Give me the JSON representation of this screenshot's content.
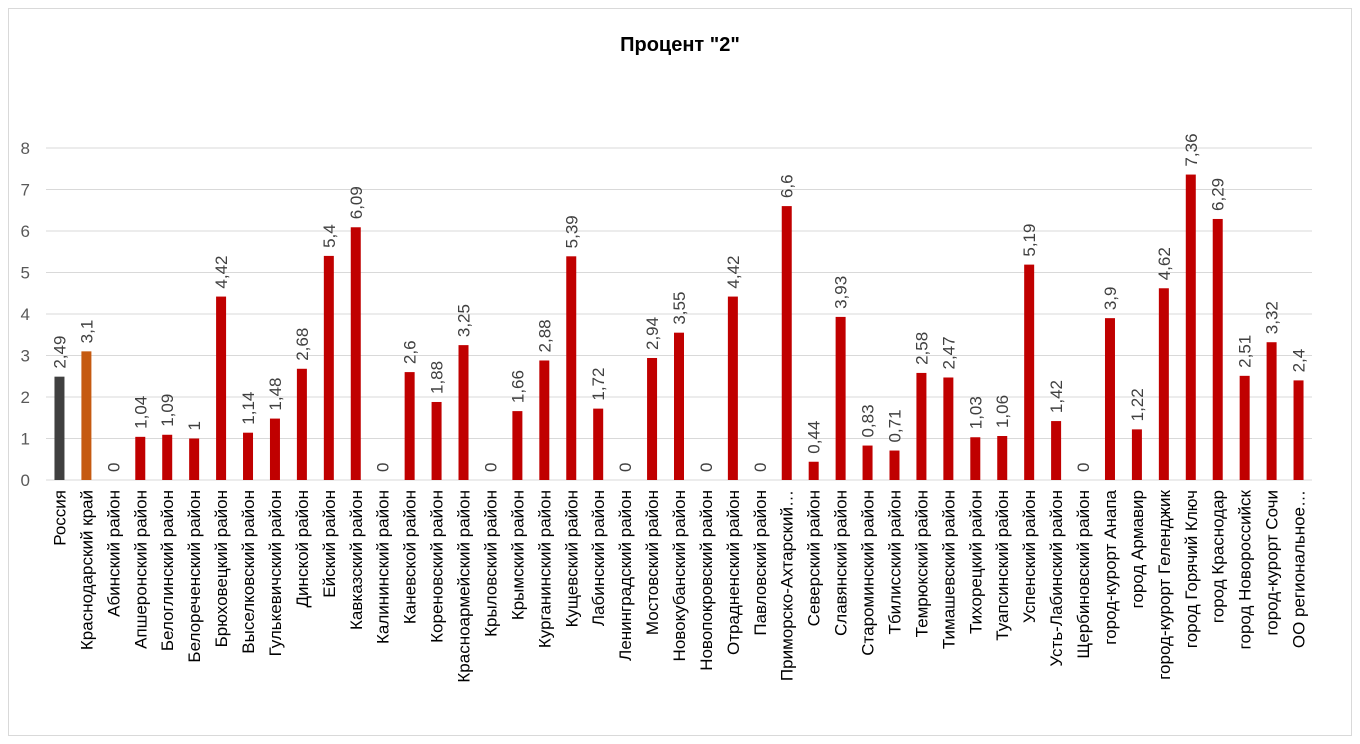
{
  "colors": {
    "russia": "#404040",
    "region": "#C55A11",
    "district": "#C00000",
    "gridline": "#D9D9D9",
    "axis_text": "#595959",
    "label_text": "#404040"
  },
  "chart_data": {
    "type": "bar",
    "title": "Процент \"2\"",
    "xlabel": "",
    "ylabel": "",
    "ylim": [
      0,
      8
    ],
    "yticks": [
      "0",
      "1",
      "2",
      "3",
      "4",
      "5",
      "6",
      "7",
      "8"
    ],
    "grid": true,
    "legend": "none",
    "categories": [
      "Россия",
      "Краснодарский край",
      "Абинский район",
      "Апшеронский  район",
      "Белоглинский  район",
      "Белореченский район",
      "Брюховецкий район",
      "Выселковский  район",
      "Гулькевичский район",
      "Динской район",
      "Ейский  район",
      "Кавказский  район",
      "Калининский  район",
      "Каневской  район",
      "Кореновский  район",
      "Красноармейский  район",
      "Крыловский район",
      "Крымский  район",
      "Курганинский  район",
      "Кущевский  район",
      "Лабинский район",
      "Ленинградский  район",
      "Мостовский  район",
      "Новокубанский  район",
      "Новопокровский  район",
      "Отрадненский  район",
      "Павловский район",
      "Приморско-Ахтарский…",
      "Северский район",
      "Славянский район",
      "Староминский  район",
      "Тбилисский  район",
      "Темрюкский район",
      "Тимашевский район",
      "Тихорецкий  район",
      "Туапсинский  район",
      "Успенский район",
      "Усть-Лабинский  район",
      "Щербиновский район",
      "город-курорт Анапа",
      "город Армавир",
      "город-курорт Геленджик",
      "город Горячий Ключ",
      "город Краснодар",
      "город Новороссийск",
      "город-курорт Сочи",
      "ОО региональное…"
    ],
    "values": [
      2.49,
      3.1,
      0,
      1.04,
      1.09,
      1,
      4.42,
      1.14,
      1.48,
      2.68,
      5.4,
      6.09,
      0,
      2.6,
      1.88,
      3.25,
      0,
      1.66,
      2.88,
      5.39,
      1.72,
      0,
      2.94,
      3.55,
      0,
      4.42,
      0,
      6.6,
      0.44,
      3.93,
      0.83,
      0.71,
      2.58,
      2.47,
      1.03,
      1.06,
      5.19,
      1.42,
      0,
      3.9,
      1.22,
      4.62,
      7.36,
      6.29,
      2.51,
      3.32,
      2.4
    ],
    "data_labels": [
      "2,49",
      "3,1",
      "0",
      "1,04",
      "1,09",
      "1",
      "4,42",
      "1,14",
      "1,48",
      "2,68",
      "5,4",
      "6,09",
      "0",
      "2,6",
      "1,88",
      "3,25",
      "0",
      "1,66",
      "2,88",
      "5,39",
      "1,72",
      "0",
      "2,94",
      "3,55",
      "0",
      "4,42",
      "0",
      "6,6",
      "0,44",
      "3,93",
      "0,83",
      "0,71",
      "2,58",
      "2,47",
      "1,03",
      "1,06",
      "5,19",
      "1,42",
      "0",
      "3,9",
      "1,22",
      "4,62",
      "7,36",
      "6,29",
      "2,51",
      "3,32",
      "2,4"
    ]
  }
}
